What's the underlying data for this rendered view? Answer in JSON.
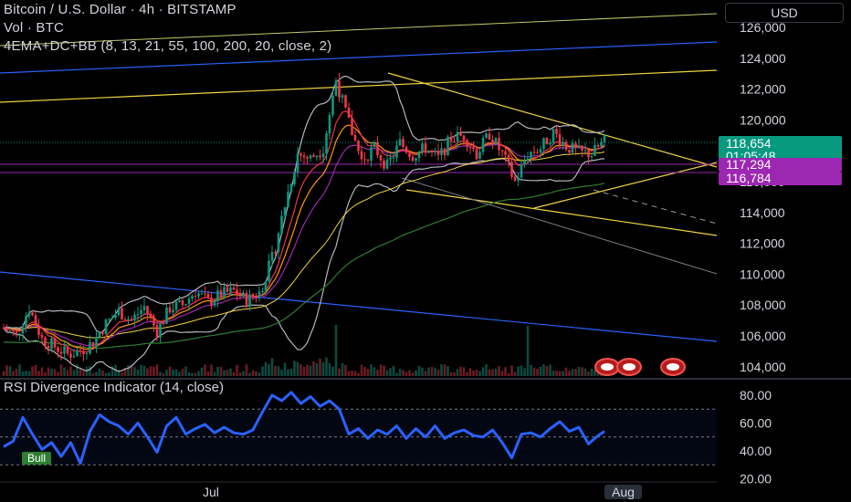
{
  "header": {
    "title": "Bitcoin / U.S. Dollar · 4h · BITSTAMP",
    "volume_label": "Vol · BTC",
    "indicator_label": "4EMA+DC+BB (8, 13, 21, 55, 100, 200, 20, close, 2)"
  },
  "currency_button": "USD",
  "price_tags": {
    "last_price": "118,654",
    "countdown": "01:05:48",
    "level_1": "117,294",
    "level_2": "116,784"
  },
  "rsi": {
    "title": "RSI Divergence Indicator (14, close)",
    "bull_label": "Bull"
  },
  "time_axis": {
    "labels": [
      "Jul",
      "Aug"
    ]
  },
  "colors": {
    "background": "#000000",
    "up": "#089981",
    "down": "#f23645",
    "rsi_line": "#2962ff",
    "last_tag": "#089981",
    "level_tag": "#9c27b0",
    "yellow_line": "#f0d43c",
    "blue_line": "#2962ff"
  },
  "chart_data": [
    {
      "type": "candlestick",
      "title": "Bitcoin / U.S. Dollar · 4h · BITSTAMP",
      "y_ticks": [
        126000,
        124000,
        122000,
        120000,
        118000,
        116000,
        114000,
        112000,
        110000,
        108000,
        106000,
        104000
      ],
      "ylim": [
        103800,
        127000
      ],
      "x_labels": [
        "Jul",
        "Aug"
      ],
      "price_path": [
        [
          0,
          106500
        ],
        [
          4,
          106000
        ],
        [
          8,
          107800
        ],
        [
          12,
          105800
        ],
        [
          16,
          105300
        ],
        [
          20,
          104800
        ],
        [
          24,
          105000
        ],
        [
          28,
          105600
        ],
        [
          32,
          106800
        ],
        [
          36,
          107600
        ],
        [
          40,
          107000
        ],
        [
          44,
          107900
        ],
        [
          48,
          106300
        ],
        [
          52,
          107800
        ],
        [
          56,
          108000
        ],
        [
          60,
          108900
        ],
        [
          64,
          108200
        ],
        [
          68,
          108700
        ],
        [
          72,
          108900
        ],
        [
          76,
          108300
        ],
        [
          80,
          108800
        ],
        [
          84,
          111000
        ],
        [
          88,
          114500
        ],
        [
          92,
          117800
        ],
        [
          96,
          117500
        ],
        [
          100,
          118200
        ],
        [
          104,
          122600
        ],
        [
          108,
          119800
        ],
        [
          112,
          117400
        ],
        [
          116,
          118200
        ],
        [
          120,
          117000
        ],
        [
          124,
          118500
        ],
        [
          128,
          117700
        ],
        [
          132,
          118200
        ],
        [
          136,
          117500
        ],
        [
          140,
          118800
        ],
        [
          144,
          119000
        ],
        [
          148,
          117800
        ],
        [
          152,
          119100
        ],
        [
          156,
          117800
        ],
        [
          160,
          116000
        ],
        [
          164,
          117800
        ],
        [
          168,
          118200
        ],
        [
          172,
          119200
        ],
        [
          176,
          118300
        ],
        [
          180,
          117900
        ],
        [
          184,
          117800
        ],
        [
          188,
          118654
        ]
      ],
      "last_price": 118654,
      "levels": [
        117294,
        116784
      ]
    },
    {
      "type": "line",
      "title": "RSI Divergence Indicator (14, close)",
      "y_ticks": [
        80,
        60,
        40,
        20
      ],
      "ylim": [
        17,
        87
      ],
      "band": [
        30,
        70
      ],
      "x_labels": [
        "Jul",
        "Aug"
      ],
      "values": [
        [
          0,
          43
        ],
        [
          3,
          47
        ],
        [
          6,
          64
        ],
        [
          9,
          52
        ],
        [
          12,
          41
        ],
        [
          15,
          46
        ],
        [
          18,
          36
        ],
        [
          21,
          46
        ],
        [
          24,
          31
        ],
        [
          27,
          54
        ],
        [
          30,
          66
        ],
        [
          33,
          61
        ],
        [
          36,
          58
        ],
        [
          39,
          52
        ],
        [
          42,
          60
        ],
        [
          45,
          50
        ],
        [
          48,
          39
        ],
        [
          51,
          58
        ],
        [
          54,
          64
        ],
        [
          57,
          52
        ],
        [
          60,
          56
        ],
        [
          63,
          59
        ],
        [
          66,
          53
        ],
        [
          69,
          57
        ],
        [
          72,
          53
        ],
        [
          75,
          52
        ],
        [
          78,
          55
        ],
        [
          81,
          68
        ],
        [
          84,
          80
        ],
        [
          87,
          76
        ],
        [
          90,
          82
        ],
        [
          93,
          74
        ],
        [
          96,
          79
        ],
        [
          99,
          72
        ],
        [
          102,
          76
        ],
        [
          105,
          70
        ],
        [
          108,
          52
        ],
        [
          111,
          56
        ],
        [
          114,
          49
        ],
        [
          117,
          55
        ],
        [
          120,
          52
        ],
        [
          123,
          58
        ],
        [
          126,
          49
        ],
        [
          129,
          56
        ],
        [
          132,
          50
        ],
        [
          135,
          58
        ],
        [
          138,
          49
        ],
        [
          141,
          53
        ],
        [
          144,
          55
        ],
        [
          147,
          51
        ],
        [
          150,
          50
        ],
        [
          153,
          55
        ],
        [
          156,
          46
        ],
        [
          159,
          35
        ],
        [
          162,
          52
        ],
        [
          165,
          53
        ],
        [
          168,
          50
        ],
        [
          171,
          56
        ],
        [
          174,
          61
        ],
        [
          177,
          54
        ],
        [
          180,
          57
        ],
        [
          183,
          45
        ],
        [
          186,
          51
        ],
        [
          188,
          54
        ]
      ]
    }
  ]
}
